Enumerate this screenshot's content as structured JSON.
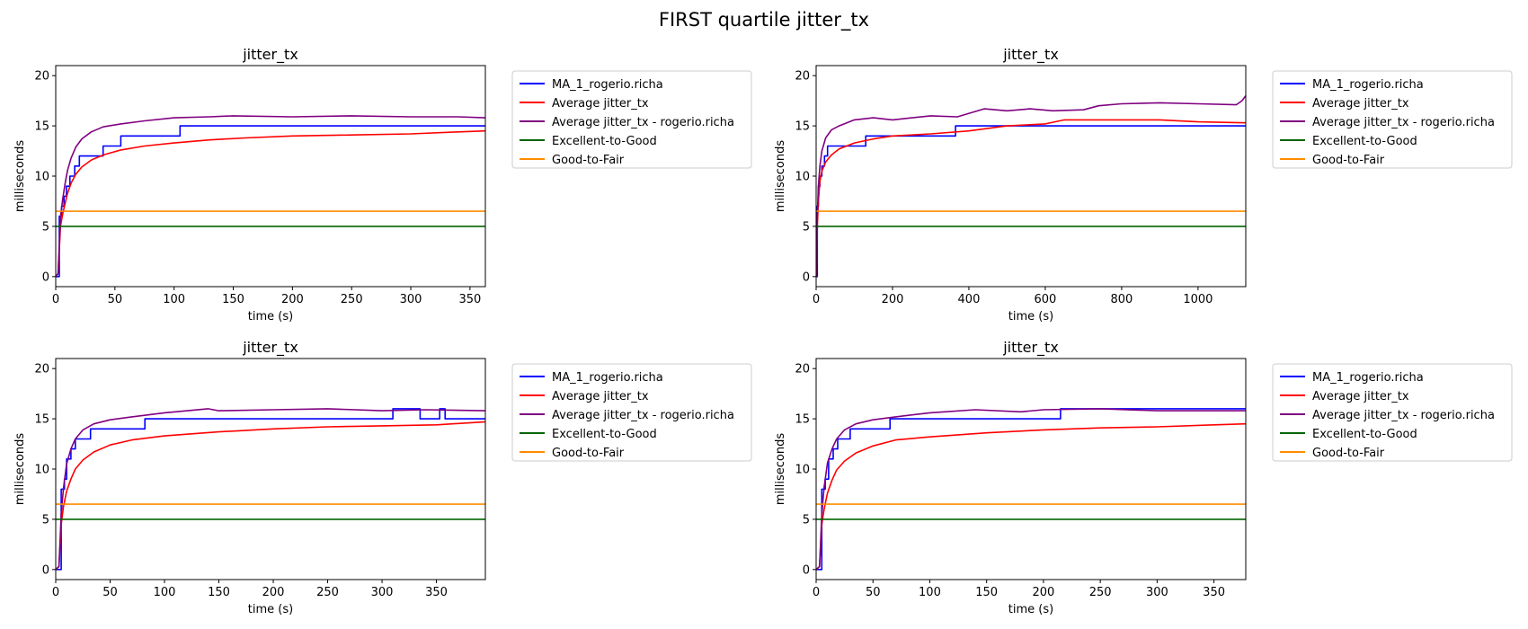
{
  "figure": {
    "suptitle": "FIRST quartile jitter_tx"
  },
  "colors": {
    "ma": "#0000ff",
    "avg": "#ff0000",
    "avg_user": "#800080",
    "excellent_good": "#006400",
    "good_fair": "#ff8c00",
    "legend_border": "#cccccc"
  },
  "chart_data": [
    {
      "type": "line",
      "title": "jitter_tx",
      "xlabel": "time (s)",
      "ylabel": "milliseconds",
      "xlim": [
        0,
        363
      ],
      "ylim": [
        -1,
        21
      ],
      "xticks": [
        0,
        50,
        100,
        150,
        200,
        250,
        300,
        350
      ],
      "yticks": [
        0,
        5,
        10,
        15,
        20
      ],
      "legend": "outside-upper-right",
      "series": [
        {
          "name": "MA_1_rogerio.richa",
          "color": "#0000ff",
          "step": true,
          "x": [
            0,
            2,
            3,
            5,
            7,
            9,
            12,
            16,
            20,
            26,
            40,
            55,
            105,
            363
          ],
          "y": [
            0,
            0,
            6,
            7,
            8,
            9,
            10,
            11,
            12,
            12,
            13,
            14,
            15,
            15
          ]
        },
        {
          "name": "Average jitter_tx",
          "color": "#ff0000",
          "x": [
            0,
            2,
            4,
            6,
            8,
            10,
            13,
            17,
            22,
            30,
            40,
            55,
            75,
            100,
            130,
            160,
            200,
            250,
            300,
            340,
            363
          ],
          "y": [
            0,
            0.3,
            5.0,
            6.3,
            7.3,
            8.3,
            9.3,
            10.2,
            10.9,
            11.6,
            12.1,
            12.6,
            13.0,
            13.3,
            13.6,
            13.8,
            14.0,
            14.1,
            14.2,
            14.4,
            14.5
          ]
        },
        {
          "name": "Average jitter_tx - rogerio.richa",
          "color": "#800080",
          "x": [
            0,
            2,
            4,
            6,
            8,
            10,
            13,
            17,
            22,
            30,
            40,
            55,
            75,
            100,
            130,
            150,
            200,
            250,
            300,
            340,
            363
          ],
          "y": [
            0,
            0.3,
            6.0,
            7.8,
            9.3,
            10.6,
            11.8,
            12.9,
            13.7,
            14.4,
            14.9,
            15.2,
            15.5,
            15.8,
            15.9,
            16.0,
            15.9,
            16.0,
            15.9,
            15.9,
            15.8
          ]
        },
        {
          "name": "Excellent-to-Good",
          "color": "#006400",
          "x": [
            0,
            363
          ],
          "y": [
            5,
            5
          ]
        },
        {
          "name": "Good-to-Fair",
          "color": "#ff8c00",
          "x": [
            0,
            363
          ],
          "y": [
            6.5,
            6.5
          ]
        }
      ]
    },
    {
      "type": "line",
      "title": "jitter_tx",
      "xlabel": "time (s)",
      "ylabel": "milliseconds",
      "xlim": [
        0,
        1125
      ],
      "ylim": [
        -1,
        21
      ],
      "xticks": [
        0,
        200,
        400,
        600,
        800,
        1000
      ],
      "yticks": [
        0,
        5,
        10,
        15,
        20
      ],
      "legend": "outside-upper-right",
      "series": [
        {
          "name": "MA_1_rogerio.richa",
          "color": "#0000ff",
          "step": true,
          "x": [
            0,
            3,
            6,
            10,
            15,
            22,
            30,
            45,
            130,
            365,
            1125
          ],
          "y": [
            0,
            7,
            9,
            10,
            11,
            12,
            13,
            13,
            14,
            15,
            15
          ]
        },
        {
          "name": "Average jitter_tx",
          "color": "#ff0000",
          "x": [
            0,
            3,
            6,
            10,
            15,
            25,
            40,
            60,
            100,
            150,
            200,
            300,
            400,
            500,
            600,
            650,
            800,
            900,
            1000,
            1125
          ],
          "y": [
            0,
            5,
            7.5,
            9.5,
            10.5,
            11.4,
            12.1,
            12.7,
            13.3,
            13.7,
            14.0,
            14.2,
            14.5,
            15.0,
            15.2,
            15.6,
            15.6,
            15.6,
            15.4,
            15.3
          ]
        },
        {
          "name": "Average jitter_tx - rogerio.richa",
          "color": "#800080",
          "x": [
            0,
            3,
            6,
            10,
            15,
            25,
            40,
            60,
            100,
            150,
            200,
            300,
            370,
            440,
            500,
            560,
            620,
            700,
            740,
            800,
            900,
            1000,
            1100,
            1115,
            1125
          ],
          "y": [
            0,
            6,
            9,
            11,
            12.5,
            13.8,
            14.6,
            15.0,
            15.6,
            15.8,
            15.6,
            16.0,
            15.9,
            16.7,
            16.5,
            16.7,
            16.5,
            16.6,
            17.0,
            17.2,
            17.3,
            17.2,
            17.1,
            17.5,
            18.0
          ]
        },
        {
          "name": "Excellent-to-Good",
          "color": "#006400",
          "x": [
            0,
            1125
          ],
          "y": [
            5,
            5
          ]
        },
        {
          "name": "Good-to-Fair",
          "color": "#ff8c00",
          "x": [
            0,
            1125
          ],
          "y": [
            6.5,
            6.5
          ]
        }
      ]
    },
    {
      "type": "line",
      "title": "jitter_tx",
      "xlabel": "time (s)",
      "ylabel": "milliseconds",
      "xlim": [
        0,
        395
      ],
      "ylim": [
        -1,
        21
      ],
      "xticks": [
        0,
        50,
        100,
        150,
        200,
        250,
        300,
        350
      ],
      "yticks": [
        0,
        5,
        10,
        15,
        20
      ],
      "legend": "outside-upper-right",
      "series": [
        {
          "name": "MA_1_rogerio.richa",
          "color": "#0000ff",
          "step": true,
          "x": [
            0,
            3,
            5,
            8,
            10,
            14,
            18,
            22,
            32,
            82,
            310,
            335,
            353,
            358,
            395
          ],
          "y": [
            0,
            0,
            8,
            9,
            11,
            12,
            13,
            13,
            14,
            15,
            16,
            15,
            16,
            15,
            15
          ]
        },
        {
          "name": "Average jitter_tx",
          "color": "#ff0000",
          "x": [
            0,
            3,
            5,
            7,
            10,
            14,
            18,
            25,
            35,
            50,
            70,
            100,
            150,
            200,
            250,
            300,
            350,
            395
          ],
          "y": [
            0,
            0.3,
            4.5,
            6.2,
            7.8,
            9.0,
            10.0,
            10.9,
            11.7,
            12.4,
            12.9,
            13.3,
            13.7,
            14.0,
            14.2,
            14.3,
            14.4,
            14.7
          ]
        },
        {
          "name": "Average jitter_tx - rogerio.richa",
          "color": "#800080",
          "x": [
            0,
            3,
            5,
            7,
            10,
            14,
            18,
            25,
            35,
            50,
            70,
            100,
            140,
            150,
            200,
            250,
            300,
            340,
            395
          ],
          "y": [
            0,
            0.3,
            5.5,
            8.0,
            10.5,
            12.0,
            13.0,
            13.9,
            14.5,
            14.9,
            15.2,
            15.6,
            16.0,
            15.8,
            15.9,
            16.0,
            15.8,
            15.9,
            15.8
          ]
        },
        {
          "name": "Excellent-to-Good",
          "color": "#006400",
          "x": [
            0,
            395
          ],
          "y": [
            5,
            5
          ]
        },
        {
          "name": "Good-to-Fair",
          "color": "#ff8c00",
          "x": [
            0,
            395
          ],
          "y": [
            6.5,
            6.5
          ]
        }
      ]
    },
    {
      "type": "line",
      "title": "jitter_tx",
      "xlabel": "time (s)",
      "ylabel": "milliseconds",
      "xlim": [
        0,
        378
      ],
      "ylim": [
        -1,
        21
      ],
      "xticks": [
        0,
        50,
        100,
        150,
        200,
        250,
        300,
        350
      ],
      "yticks": [
        0,
        5,
        10,
        15,
        20
      ],
      "legend": "outside-upper-right",
      "series": [
        {
          "name": "MA_1_rogerio.richa",
          "color": "#0000ff",
          "step": true,
          "x": [
            0,
            3,
            5,
            8,
            11,
            15,
            19,
            24,
            30,
            65,
            215,
            378
          ],
          "y": [
            0,
            0,
            8,
            9,
            11,
            12,
            13,
            13,
            14,
            15,
            16,
            16
          ]
        },
        {
          "name": "Average jitter_tx",
          "color": "#ff0000",
          "x": [
            0,
            3,
            5,
            7,
            10,
            14,
            18,
            25,
            35,
            50,
            70,
            100,
            150,
            200,
            250,
            300,
            350,
            378
          ],
          "y": [
            0,
            0.3,
            4.5,
            6.0,
            7.6,
            8.9,
            9.9,
            10.8,
            11.6,
            12.3,
            12.9,
            13.2,
            13.6,
            13.9,
            14.1,
            14.2,
            14.4,
            14.5
          ]
        },
        {
          "name": "Average jitter_tx - rogerio.richa",
          "color": "#800080",
          "x": [
            0,
            3,
            5,
            7,
            10,
            14,
            18,
            25,
            35,
            50,
            70,
            100,
            140,
            180,
            200,
            250,
            300,
            330,
            378
          ],
          "y": [
            0,
            0.3,
            5.5,
            8.2,
            10.6,
            12.0,
            13.0,
            13.9,
            14.5,
            14.9,
            15.2,
            15.6,
            15.9,
            15.7,
            15.9,
            16.0,
            15.8,
            15.8,
            15.8
          ]
        },
        {
          "name": "Excellent-to-Good",
          "color": "#006400",
          "x": [
            0,
            378
          ],
          "y": [
            5,
            5
          ]
        },
        {
          "name": "Good-to-Fair",
          "color": "#ff8c00",
          "x": [
            0,
            378
          ],
          "y": [
            6.5,
            6.5
          ]
        }
      ]
    }
  ]
}
